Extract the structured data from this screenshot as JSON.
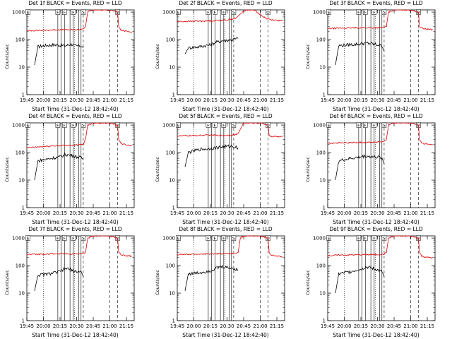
{
  "chart_data": [
    {
      "type": "line",
      "title": "Det 1f BLACK = Events, RED = LLD",
      "xlabel": "Start Time (31-Dec-12 18:42:40)",
      "ylabel": "Counts/sec",
      "x_ticks": [
        "19:45",
        "20:00",
        "20:15",
        "20:30",
        "20:45",
        "21:00",
        "21:15"
      ],
      "y_ticks": [
        "1",
        "10",
        "100",
        "1000"
      ],
      "ylim": [
        1,
        1200
      ],
      "scale_y": "log",
      "markers": [
        "E",
        "F",
        "F",
        "F",
        "S",
        "D"
      ],
      "series": [
        {
          "name": "BLACK",
          "color": "#000000",
          "x": [
            "19:52",
            "19:55",
            "20:00",
            "20:05",
            "20:10",
            "20:15",
            "20:20",
            "20:25",
            "20:30",
            "20:34",
            "20:36"
          ],
          "y": [
            12,
            55,
            60,
            62,
            65,
            62,
            60,
            68,
            58,
            60,
            50
          ]
        },
        {
          "name": "RED",
          "color": "#e00000",
          "x": [
            "19:45",
            "19:55",
            "20:05",
            "20:15",
            "20:25",
            "20:32",
            "20:36",
            "20:38",
            "20:40",
            "20:45",
            "21:00",
            "21:07",
            "21:08",
            "21:10",
            "21:15",
            "21:20"
          ],
          "y": [
            210,
            215,
            220,
            230,
            225,
            230,
            250,
            300,
            1000,
            1200,
            1200,
            1000,
            300,
            220,
            200,
            190
          ]
        }
      ]
    },
    {
      "type": "line",
      "title": "Det 2f BLACK = Events, RED = LLD",
      "xlabel": "Start Time (31-Dec-12 18:42:40)",
      "ylabel": "Counts/sec",
      "x_ticks": [
        "19:45",
        "20:00",
        "20:15",
        "20:30",
        "20:45",
        "21:00",
        "21:15"
      ],
      "y_ticks": [
        "1",
        "10",
        "100",
        "1000"
      ],
      "ylim": [
        1,
        1200
      ],
      "scale_y": "log",
      "markers": [
        "E",
        "F",
        "F",
        "F",
        "S",
        "D"
      ],
      "series": [
        {
          "name": "BLACK",
          "color": "#000000",
          "x": [
            "19:52",
            "19:55",
            "20:05",
            "20:15",
            "20:20",
            "20:25",
            "20:30",
            "20:35",
            "20:40"
          ],
          "y": [
            30,
            50,
            55,
            65,
            80,
            90,
            95,
            100,
            110
          ]
        },
        {
          "name": "RED",
          "color": "#e00000",
          "x": [
            "19:45",
            "19:55",
            "20:05",
            "20:15",
            "20:22",
            "20:30",
            "20:38",
            "20:44",
            "20:48",
            "20:55",
            "21:00",
            "21:05",
            "21:10",
            "21:15",
            "21:20"
          ],
          "y": [
            450,
            460,
            470,
            480,
            490,
            520,
            600,
            1000,
            1200,
            1200,
            800,
            600,
            530,
            500,
            480
          ]
        }
      ]
    },
    {
      "type": "line",
      "title": "Det 3f BLACK = Events, RED = LLD",
      "xlabel": "Start Time (31-Dec-12 18:42:40)",
      "ylabel": "Counts/sec",
      "x_ticks": [
        "19:45",
        "20:00",
        "20:15",
        "20:30",
        "20:45",
        "21:00",
        "21:15"
      ],
      "y_ticks": [
        "1",
        "10",
        "100",
        "1000"
      ],
      "ylim": [
        1,
        1200
      ],
      "scale_y": "log",
      "markers": [
        "E",
        "F",
        "F",
        "F",
        "S",
        "D"
      ],
      "series": [
        {
          "name": "BLACK",
          "color": "#000000",
          "x": [
            "19:52",
            "19:55",
            "20:05",
            "20:15",
            "20:20",
            "20:25",
            "20:30",
            "20:34",
            "20:36"
          ],
          "y": [
            12,
            60,
            65,
            70,
            75,
            70,
            65,
            60,
            40
          ]
        },
        {
          "name": "RED",
          "color": "#e00000",
          "x": [
            "19:45",
            "19:55",
            "20:05",
            "20:15",
            "20:25",
            "20:32",
            "20:36",
            "20:38",
            "20:40",
            "20:45",
            "21:00",
            "21:07",
            "21:08",
            "21:10",
            "21:15",
            "21:20"
          ],
          "y": [
            250,
            260,
            265,
            270,
            265,
            270,
            280,
            300,
            1000,
            1200,
            1200,
            1000,
            300,
            260,
            240,
            230
          ]
        }
      ]
    },
    {
      "type": "line",
      "title": "Det 4f BLACK = Events, RED = LLD",
      "xlabel": "Start Time (31-Dec-12 18:42:40)",
      "ylabel": "Counts/sec",
      "x_ticks": [
        "19:45",
        "20:00",
        "20:15",
        "20:30",
        "20:45",
        "21:00",
        "21:15"
      ],
      "y_ticks": [
        "1",
        "10",
        "100",
        "1000"
      ],
      "ylim": [
        1,
        1200
      ],
      "scale_y": "log",
      "markers": [
        "E",
        "F",
        "F",
        "F",
        "S",
        "D"
      ],
      "series": [
        {
          "name": "BLACK",
          "color": "#000000",
          "x": [
            "19:52",
            "19:55",
            "20:05",
            "20:15",
            "20:20",
            "20:25",
            "20:30",
            "20:34",
            "20:36"
          ],
          "y": [
            10,
            50,
            60,
            70,
            85,
            80,
            70,
            65,
            60
          ]
        },
        {
          "name": "RED",
          "color": "#e00000",
          "x": [
            "19:45",
            "19:55",
            "20:05",
            "20:15",
            "20:25",
            "20:32",
            "20:36",
            "20:38",
            "20:40",
            "20:45",
            "21:00",
            "21:07",
            "21:08",
            "21:10",
            "21:15",
            "21:20"
          ],
          "y": [
            150,
            160,
            170,
            180,
            185,
            190,
            200,
            300,
            1000,
            1200,
            1200,
            1000,
            300,
            210,
            190,
            180
          ]
        }
      ]
    },
    {
      "type": "line",
      "title": "Det 5f BLACK = Events, RED = LLD",
      "xlabel": "Start Time (31-Dec-12 18:42:40)",
      "ylabel": "Counts/sec",
      "x_ticks": [
        "19:45",
        "20:00",
        "20:15",
        "20:30",
        "20:45",
        "21:00",
        "21:15"
      ],
      "y_ticks": [
        "1",
        "10",
        "100",
        "1000"
      ],
      "ylim": [
        1,
        1200
      ],
      "scale_y": "log",
      "markers": [
        "E",
        "F",
        "F",
        "F",
        "S",
        "D"
      ],
      "series": [
        {
          "name": "BLACK",
          "color": "#000000",
          "x": [
            "19:52",
            "19:55",
            "20:05",
            "20:15",
            "20:20",
            "20:25",
            "20:30",
            "20:35",
            "20:40"
          ],
          "y": [
            30,
            100,
            130,
            140,
            150,
            160,
            165,
            170,
            150
          ]
        },
        {
          "name": "RED",
          "color": "#e00000",
          "x": [
            "19:45",
            "19:55",
            "20:05",
            "20:15",
            "20:25",
            "20:32",
            "20:38",
            "20:40",
            "20:44",
            "20:45",
            "21:00",
            "21:07",
            "21:08",
            "21:10",
            "21:15",
            "21:20"
          ],
          "y": [
            400,
            410,
            420,
            430,
            420,
            430,
            450,
            500,
            1000,
            1200,
            1200,
            1000,
            400,
            390,
            380,
            370
          ]
        }
      ]
    },
    {
      "type": "line",
      "title": "Det 6f BLACK = Events, RED = LLD",
      "xlabel": "Start Time (31-Dec-12 18:42:40)",
      "ylabel": "Counts/sec",
      "x_ticks": [
        "19:45",
        "20:00",
        "20:15",
        "20:30",
        "20:45",
        "21:00",
        "21:15"
      ],
      "y_ticks": [
        "1",
        "10",
        "100",
        "1000"
      ],
      "ylim": [
        1,
        1200
      ],
      "scale_y": "log",
      "markers": [
        "E",
        "F",
        "F",
        "F",
        "S",
        "D"
      ],
      "series": [
        {
          "name": "BLACK",
          "color": "#000000",
          "x": [
            "19:52",
            "19:55",
            "20:05",
            "20:15",
            "20:20",
            "20:25",
            "20:30",
            "20:34",
            "20:36"
          ],
          "y": [
            10,
            50,
            60,
            70,
            75,
            70,
            68,
            65,
            40
          ]
        },
        {
          "name": "RED",
          "color": "#e00000",
          "x": [
            "19:45",
            "19:55",
            "20:05",
            "20:15",
            "20:25",
            "20:32",
            "20:36",
            "20:38",
            "20:40",
            "20:45",
            "21:00",
            "21:07",
            "21:08",
            "21:10",
            "21:15",
            "21:20"
          ],
          "y": [
            220,
            225,
            230,
            235,
            240,
            245,
            250,
            300,
            1000,
            1200,
            1200,
            1000,
            300,
            220,
            200,
            190
          ]
        }
      ]
    },
    {
      "type": "line",
      "title": "Det 7f BLACK = Events, RED = LLD",
      "xlabel": "Start Time (31-Dec-12 18:42:40)",
      "ylabel": "Counts/sec",
      "x_ticks": [
        "19:45",
        "20:00",
        "20:15",
        "20:30",
        "20:45",
        "21:00",
        "21:15"
      ],
      "y_ticks": [
        "1",
        "10",
        "100",
        "1000"
      ],
      "ylim": [
        1,
        1200
      ],
      "scale_y": "log",
      "markers": [
        "E",
        "F",
        "F",
        "F",
        "S",
        "D"
      ],
      "series": [
        {
          "name": "BLACK",
          "color": "#000000",
          "x": [
            "19:52",
            "19:55",
            "20:05",
            "20:15",
            "20:20",
            "20:25",
            "20:30",
            "20:34",
            "20:36"
          ],
          "y": [
            12,
            45,
            50,
            60,
            80,
            70,
            60,
            60,
            40
          ]
        },
        {
          "name": "RED",
          "color": "#e00000",
          "x": [
            "19:45",
            "19:55",
            "20:05",
            "20:15",
            "20:25",
            "20:32",
            "20:36",
            "20:38",
            "20:40",
            "20:45",
            "21:00",
            "21:07",
            "21:08",
            "21:10",
            "21:15",
            "21:20"
          ],
          "y": [
            250,
            260,
            265,
            270,
            265,
            270,
            280,
            300,
            1000,
            1200,
            1200,
            1000,
            300,
            250,
            230,
            220
          ]
        }
      ]
    },
    {
      "type": "line",
      "title": "Det 8f BLACK = Events, RED = LLD",
      "xlabel": "Start Time (31-Dec-12 18:42:40)",
      "ylabel": "Counts/sec",
      "x_ticks": [
        "19:45",
        "20:00",
        "20:15",
        "20:30",
        "20:45",
        "21:00",
        "21:15"
      ],
      "y_ticks": [
        "1",
        "10",
        "100",
        "1000"
      ],
      "ylim": [
        1,
        1200
      ],
      "scale_y": "log",
      "markers": [
        "E",
        "F",
        "F",
        "F",
        "S",
        "D"
      ],
      "series": [
        {
          "name": "BLACK",
          "color": "#000000",
          "x": [
            "19:52",
            "19:55",
            "20:05",
            "20:15",
            "20:20",
            "20:25",
            "20:30",
            "20:35",
            "20:40"
          ],
          "y": [
            12,
            50,
            55,
            65,
            80,
            90,
            85,
            80,
            70
          ]
        },
        {
          "name": "RED",
          "color": "#e00000",
          "x": [
            "19:45",
            "19:55",
            "20:05",
            "20:15",
            "20:25",
            "20:32",
            "20:38",
            "20:40",
            "20:42",
            "20:45",
            "21:00",
            "21:07",
            "21:08",
            "21:10",
            "21:15",
            "21:20"
          ],
          "y": [
            250,
            255,
            260,
            265,
            270,
            275,
            280,
            300,
            1000,
            1200,
            1200,
            1000,
            300,
            240,
            220,
            210
          ]
        }
      ]
    },
    {
      "type": "line",
      "title": "Det 9f BLACK = Events, RED = LLD",
      "xlabel": "Start Time (31-Dec-12 18:42:40)",
      "ylabel": "Counts/sec",
      "x_ticks": [
        "19:45",
        "20:00",
        "20:15",
        "20:30",
        "20:45",
        "21:00",
        "21:15"
      ],
      "y_ticks": [
        "1",
        "10",
        "100",
        "1000"
      ],
      "ylim": [
        1,
        1200
      ],
      "scale_y": "log",
      "markers": [
        "E",
        "F",
        "F",
        "F",
        "S",
        "D"
      ],
      "series": [
        {
          "name": "BLACK",
          "color": "#000000",
          "x": [
            "19:52",
            "19:55",
            "20:05",
            "20:15",
            "20:20",
            "20:25",
            "20:30",
            "20:34",
            "20:36"
          ],
          "y": [
            10,
            50,
            60,
            75,
            90,
            80,
            70,
            60,
            40
          ]
        },
        {
          "name": "RED",
          "color": "#e00000",
          "x": [
            "19:45",
            "19:55",
            "20:05",
            "20:15",
            "20:25",
            "20:32",
            "20:36",
            "20:38",
            "20:40",
            "20:45",
            "21:00",
            "21:07",
            "21:08",
            "21:10",
            "21:15",
            "21:20"
          ],
          "y": [
            230,
            240,
            245,
            250,
            250,
            255,
            260,
            300,
            1000,
            1200,
            1200,
            1000,
            300,
            220,
            200,
            190
          ]
        }
      ]
    }
  ]
}
